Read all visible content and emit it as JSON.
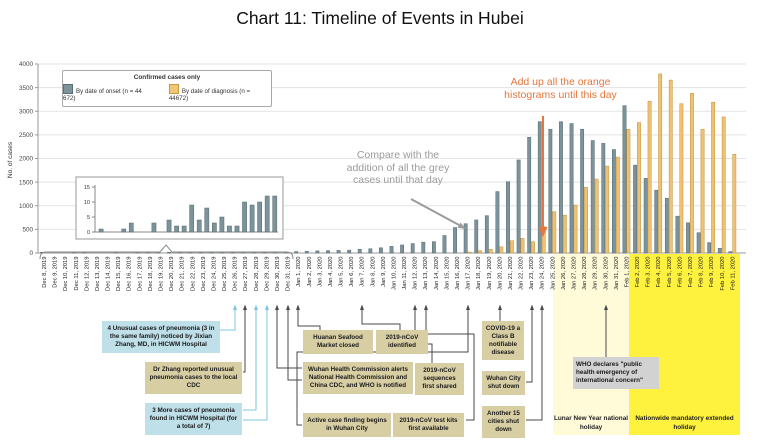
{
  "title": "Chart 11: Timeline of Events in Hubei",
  "legend": {
    "title": "Confirmed cases only",
    "onset": "By date of onset (n = 44 672)",
    "diagnosis": "By date of diagnosis (n = 44672)"
  },
  "axes": {
    "y_label": "No. of cases",
    "y_ticks": [
      0,
      500,
      1000,
      1500,
      2000,
      2500,
      3000,
      3500,
      4000
    ],
    "inset_ticks": [
      0,
      5,
      10,
      15
    ]
  },
  "annotations": {
    "orange": {
      "lines": [
        "Add up all the orange",
        "histograms until this day"
      ],
      "points_to": "Jan 23, 2020",
      "color": "#E5763C"
    },
    "grey": {
      "lines": [
        "Compare with the",
        "addition of all the grey",
        "cases until that day"
      ],
      "color": "#9B9B9B"
    }
  },
  "bands": {
    "lunar": {
      "label": "Lunar New Year national holiday",
      "color": "#FFFBD9",
      "range": "Jan 25 - Jan 31"
    },
    "extended": {
      "label": "Nationwide mandatory extended holiday",
      "color": "#FFF23E",
      "range": "Feb 1 - Feb 10"
    }
  },
  "events": [
    {
      "date": "Dec 26",
      "style": "blue",
      "label": "4 Unusual cases of pneumonia (3 in the same family) noticed by Jixian Zhang, MD, in HICWM Hospital"
    },
    {
      "date": "Dec 27",
      "style": "tan",
      "label": "Dr Zhang reported unusual pneumonia cases to the local CDC"
    },
    {
      "date": "Dec 28-29",
      "style": "blue",
      "label": "3 More cases of pneumonia found in HICWM Hospital (for a total of 7)"
    },
    {
      "date": "Jan 1",
      "style": "tan",
      "label": "Huanan Seafood Market closed"
    },
    {
      "date": "Jan 7",
      "style": "tan",
      "label": "2019-nCoV identified"
    },
    {
      "date": "Dec 30-31",
      "style": "tan",
      "label": "Wuhan Health Commission alerts National Health Commission and China CDC, and WHO is notified"
    },
    {
      "date": "Jan 12",
      "style": "tan",
      "label": "2019-nCoV sequences first shared"
    },
    {
      "date": "Jan 17",
      "style": "tan",
      "label": "Active case finding begins in Wuhan City"
    },
    {
      "date": "Jan 13",
      "style": "tan",
      "label": "2019-nCoV test kits first available"
    },
    {
      "date": "Jan 20",
      "style": "tan",
      "label": "COVID-19 a Class B notifiable disease"
    },
    {
      "date": "Jan 23",
      "style": "tan",
      "label": "Wuhan City shut down"
    },
    {
      "date": "Jan 24",
      "style": "tan",
      "label": "Another 15 cities shut down"
    },
    {
      "date": "Jan 30",
      "style": "grey",
      "label": "WHO declares \"public health emergency of international concern\""
    }
  ],
  "chart_data": {
    "type": "bar",
    "title": "Chart 11: Timeline of Events in Hubei",
    "ylabel": "No. of cases",
    "ylim": [
      0,
      4000
    ],
    "grid": true,
    "legend_position": "upper left",
    "x": [
      "Dec 8, 2019",
      "Dec 9, 2019",
      "Dec 10, 2019",
      "Dec 11, 2019",
      "Dec 12, 2019",
      "Dec 13, 2019",
      "Dec 14, 2019",
      "Dec 15, 2019",
      "Dec 16, 2019",
      "Dec 17, 2019",
      "Dec 18, 2019",
      "Dec 19, 2019",
      "Dec 20, 2019",
      "Dec 21, 2019",
      "Dec 22, 2019",
      "Dec 23, 2019",
      "Dec 24, 2019",
      "Dec 25, 2019",
      "Dec 26, 2019",
      "Dec 27, 2019",
      "Dec 28, 2019",
      "Dec 29, 2019",
      "Dec 30, 2019",
      "Dec 31, 2019",
      "Jan 1, 2020",
      "Jan 2, 2020",
      "Jan 3, 2020",
      "Jan 4, 2020",
      "Jan 5, 2020",
      "Jan 6, 2020",
      "Jan 7, 2020",
      "Jan 8, 2020",
      "Jan 9, 2020",
      "Jan 10, 2020",
      "Jan 11, 2020",
      "Jan 12, 2020",
      "Jan 13, 2020",
      "Jan 14, 2020",
      "Jan 15, 2020",
      "Jan 16, 2020",
      "Jan 17, 2020",
      "Jan 18, 2020",
      "Jan 19, 2020",
      "Jan 20, 2020",
      "Jan 21, 2020",
      "Jan 22, 2020",
      "Jan 23, 2020",
      "Jan 24, 2020",
      "Jan 25, 2020",
      "Jan 26, 2020",
      "Jan 27, 2020",
      "Jan 28, 2020",
      "Jan 29, 2020",
      "Jan 30, 2020",
      "Jan 31, 2020",
      "Feb 1, 2020",
      "Feb 2, 2020",
      "Feb 3, 2020",
      "Feb 4, 2020",
      "Feb 5, 2020",
      "Feb 6, 2020",
      "Feb 7, 2020",
      "Feb 8, 2020",
      "Feb 9, 2020",
      "Feb 10, 2020",
      "Feb 11, 2020"
    ],
    "series": [
      {
        "name": "By date of onset",
        "color": "#7C939B",
        "values": [
          1,
          0,
          0,
          1,
          3,
          0,
          0,
          3,
          0,
          4,
          2,
          2,
          9,
          4,
          8,
          3,
          5,
          2,
          2,
          10,
          9,
          10,
          12,
          12,
          30,
          35,
          45,
          50,
          55,
          60,
          80,
          90,
          110,
          140,
          170,
          200,
          230,
          240,
          370,
          540,
          620,
          700,
          790,
          1300,
          1510,
          1970,
          2450,
          2780,
          2620,
          2780,
          2740,
          2620,
          2380,
          2320,
          2190,
          3120,
          1860,
          1580,
          1330,
          1160,
          780,
          640,
          430,
          220,
          100,
          30
        ]
      },
      {
        "name": "By date of diagnosis",
        "color": "#EFC173",
        "values": [
          0,
          0,
          0,
          0,
          0,
          0,
          0,
          0,
          0,
          0,
          0,
          0,
          0,
          0,
          0,
          0,
          0,
          0,
          0,
          0,
          0,
          0,
          0,
          0,
          0,
          0,
          0,
          0,
          0,
          0,
          0,
          0,
          0,
          0,
          0,
          0,
          0,
          0,
          0,
          0,
          20,
          50,
          80,
          130,
          260,
          310,
          240,
          560,
          875,
          800,
          1015,
          1390,
          1565,
          1840,
          2030,
          2620,
          2760,
          3210,
          3790,
          3660,
          3160,
          3380,
          2620,
          3190,
          2880,
          2090
        ]
      }
    ],
    "inset": {
      "note": "zoom of onset cases Dec 8-31",
      "ylim": [
        0,
        15
      ],
      "values": [
        1,
        0,
        0,
        1,
        3,
        0,
        0,
        3,
        0,
        4,
        2,
        2,
        9,
        4,
        8,
        3,
        5,
        2,
        2,
        10,
        9,
        10,
        12,
        12
      ]
    }
  },
  "colors": {
    "onset_fill": "#7C939B",
    "onset_stroke": "#54696F",
    "diag_fill": "#EFC173",
    "diag_stroke": "#C1943C",
    "connector_blue": "#7FC4E2",
    "connector_dark": "#4A4A4A",
    "grid": "#E3E3E3",
    "axis": "#999999"
  }
}
